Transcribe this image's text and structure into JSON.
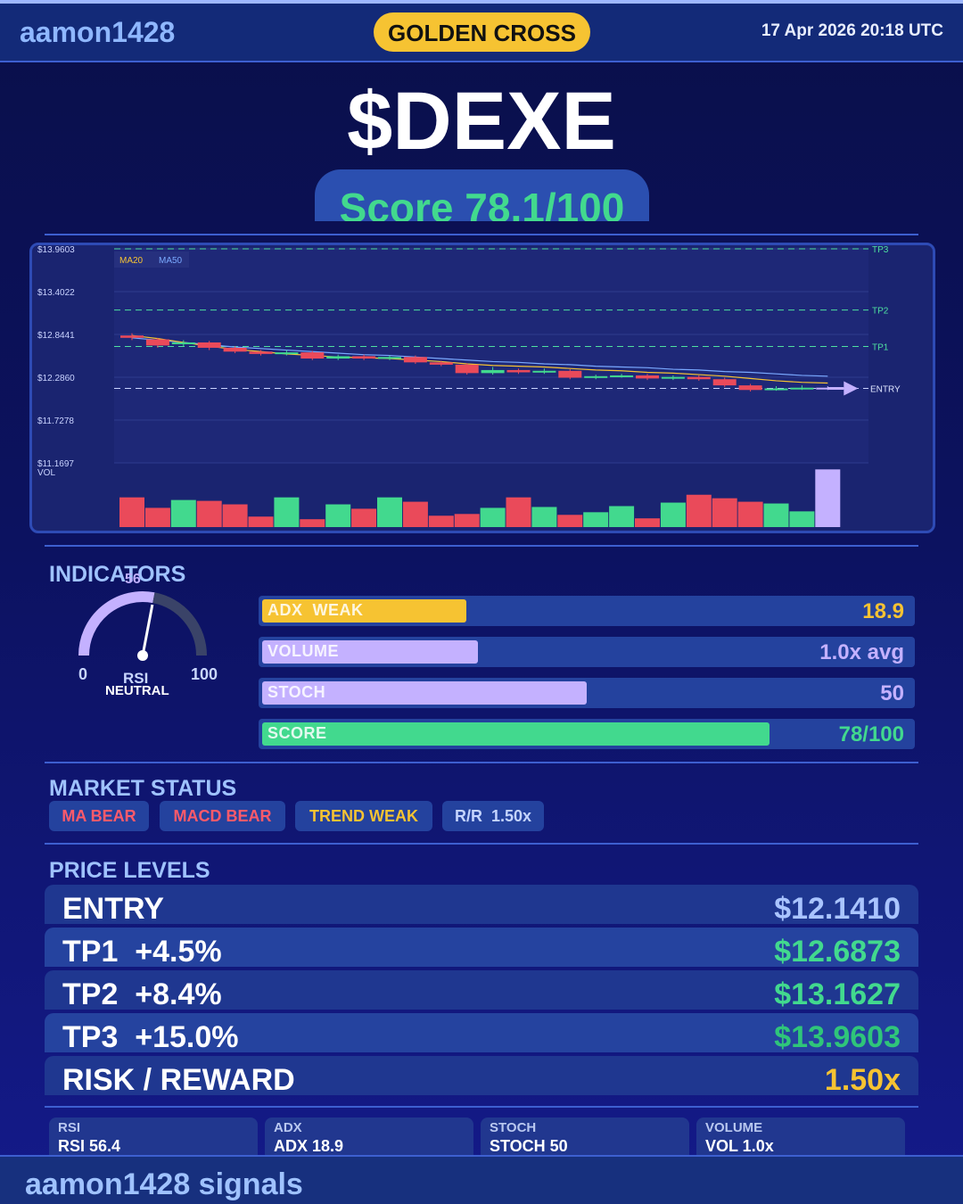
{
  "header": {
    "brand": "aamon1428",
    "signal": "GOLDEN CROSS",
    "datetime": "17 Apr 2026  20:18 UTC"
  },
  "ticker": "$DEXE",
  "score_text": "Score 78.1/100",
  "chart_data": {
    "type": "candlestick",
    "y_ticks": [
      "$13.9603",
      "$13.4022",
      "$12.8441",
      "$12.2860",
      "$11.7278",
      "$11.1697"
    ],
    "ylim": [
      11.1697,
      13.9603
    ],
    "ma_labels": [
      "MA20",
      "MA50"
    ],
    "levels": [
      {
        "name": "TP3",
        "value": 13.9603
      },
      {
        "name": "TP2",
        "value": 13.1627
      },
      {
        "name": "TP1",
        "value": 12.6873
      },
      {
        "name": "ENTRY",
        "value": 12.141
      }
    ],
    "candles": [
      [
        12.83,
        12.8,
        12.86,
        12.77
      ],
      [
        12.78,
        12.7,
        12.8,
        12.67
      ],
      [
        12.72,
        12.74,
        12.77,
        12.69
      ],
      [
        12.74,
        12.67,
        12.76,
        12.64
      ],
      [
        12.67,
        12.62,
        12.69,
        12.6
      ],
      [
        12.62,
        12.59,
        12.64,
        12.57
      ],
      [
        12.59,
        12.61,
        12.64,
        12.57
      ],
      [
        12.61,
        12.53,
        12.63,
        12.51
      ],
      [
        12.53,
        12.56,
        12.58,
        12.51
      ],
      [
        12.56,
        12.53,
        12.58,
        12.51
      ],
      [
        12.53,
        12.55,
        12.57,
        12.51
      ],
      [
        12.55,
        12.48,
        12.57,
        12.46
      ],
      [
        12.48,
        12.45,
        12.5,
        12.43
      ],
      [
        12.45,
        12.34,
        12.47,
        12.32
      ],
      [
        12.34,
        12.38,
        12.42,
        12.32
      ],
      [
        12.38,
        12.35,
        12.4,
        12.33
      ],
      [
        12.35,
        12.37,
        12.4,
        12.33
      ],
      [
        12.37,
        12.28,
        12.39,
        12.26
      ],
      [
        12.28,
        12.3,
        12.32,
        12.26
      ],
      [
        12.3,
        12.31,
        12.33,
        12.28
      ],
      [
        12.31,
        12.27,
        12.33,
        12.25
      ],
      [
        12.27,
        12.29,
        12.31,
        12.25
      ],
      [
        12.29,
        12.26,
        12.31,
        12.24
      ],
      [
        12.26,
        12.18,
        12.28,
        12.16
      ],
      [
        12.18,
        12.12,
        12.2,
        12.1
      ],
      [
        12.12,
        12.14,
        12.17,
        12.11
      ],
      [
        12.14,
        12.15,
        12.18,
        12.12
      ],
      [
        12.14,
        12.15,
        12.17,
        12.12
      ]
    ],
    "ma20": [
      12.83,
      12.79,
      12.74,
      12.69,
      12.65,
      12.62,
      12.59,
      12.57,
      12.55,
      12.54,
      12.53,
      12.51,
      12.49,
      12.46,
      12.44,
      12.43,
      12.42,
      12.4,
      12.38,
      12.37,
      12.35,
      12.34,
      12.32,
      12.3,
      12.27,
      12.24,
      12.22,
      12.21
    ],
    "ma50": [
      12.8,
      12.77,
      12.74,
      12.71,
      12.68,
      12.66,
      12.64,
      12.62,
      12.6,
      12.58,
      12.57,
      12.55,
      12.53,
      12.51,
      12.49,
      12.48,
      12.46,
      12.45,
      12.43,
      12.42,
      12.41,
      12.39,
      12.38,
      12.36,
      12.35,
      12.33,
      12.31,
      12.3
    ],
    "vol_label": "VOL",
    "volume": [
      0.34,
      0.22,
      0.31,
      0.3,
      0.26,
      0.12,
      0.34,
      0.09,
      0.26,
      0.21,
      0.34,
      0.29,
      0.13,
      0.15,
      0.22,
      0.34,
      0.23,
      0.14,
      0.17,
      0.24,
      0.1,
      0.28,
      0.37,
      0.33,
      0.29,
      0.27,
      0.18,
      0.66
    ],
    "volume_up": [
      false,
      false,
      true,
      false,
      false,
      false,
      true,
      false,
      true,
      false,
      true,
      false,
      false,
      false,
      true,
      false,
      true,
      false,
      true,
      true,
      false,
      true,
      false,
      false,
      false,
      true,
      true,
      null
    ]
  },
  "indicators": {
    "title": "INDICATORS",
    "rsi": {
      "value": "56",
      "value_num": 56,
      "min": "0",
      "max": "100",
      "name": "RSI",
      "state": "NEUTRAL"
    },
    "bars": [
      {
        "label": "ADX  WEAK",
        "value": "18.9",
        "fill": 0.315,
        "color": "#f6c332",
        "value_color": "#f6c332"
      },
      {
        "label": "VOLUME",
        "value": "1.0x avg",
        "fill": 0.333,
        "color": "#c4b1ff",
        "value_color": "#c4b1ff"
      },
      {
        "label": "STOCH",
        "value": "50",
        "fill": 0.5,
        "color": "#c4b1ff",
        "value_color": "#c4b1ff"
      },
      {
        "label": "SCORE",
        "value": "78/100",
        "fill": 0.781,
        "color": "#42d98e",
        "value_color": "#42d98e"
      }
    ]
  },
  "market_status": {
    "title": "MARKET STATUS",
    "badges": [
      {
        "label": "MA BEAR",
        "color": "#ff5a6a"
      },
      {
        "label": "MACD BEAR",
        "color": "#ff5a6a"
      },
      {
        "label": "TREND WEAK",
        "color": "#f6c332"
      },
      {
        "label": "R/R  1.50x",
        "color": "#c4d4ff"
      }
    ]
  },
  "price_levels": {
    "title": "PRICE LEVELS",
    "rows": [
      {
        "label": "ENTRY",
        "value": "$12.1410",
        "color": "#a9c4ff"
      },
      {
        "label": "TP1  +4.5%",
        "value": "$12.6873",
        "color": "#42d98e"
      },
      {
        "label": "TP2  +8.4%",
        "value": "$13.1627",
        "color": "#42d98e"
      },
      {
        "label": "TP3  +15.0%",
        "value": "$13.9603",
        "color": "#2fc57a"
      },
      {
        "label": "RISK / REWARD",
        "value": "1.50x",
        "color": "#f6c332"
      }
    ]
  },
  "stats": [
    {
      "key": "RSI",
      "value": "RSI 56.4"
    },
    {
      "key": "ADX",
      "value": "ADX 18.9"
    },
    {
      "key": "STOCH",
      "value": "STOCH 50"
    },
    {
      "key": "VOLUME",
      "value": "VOL 1.0x"
    }
  ],
  "footer": {
    "text": "aamon1428 signals"
  }
}
